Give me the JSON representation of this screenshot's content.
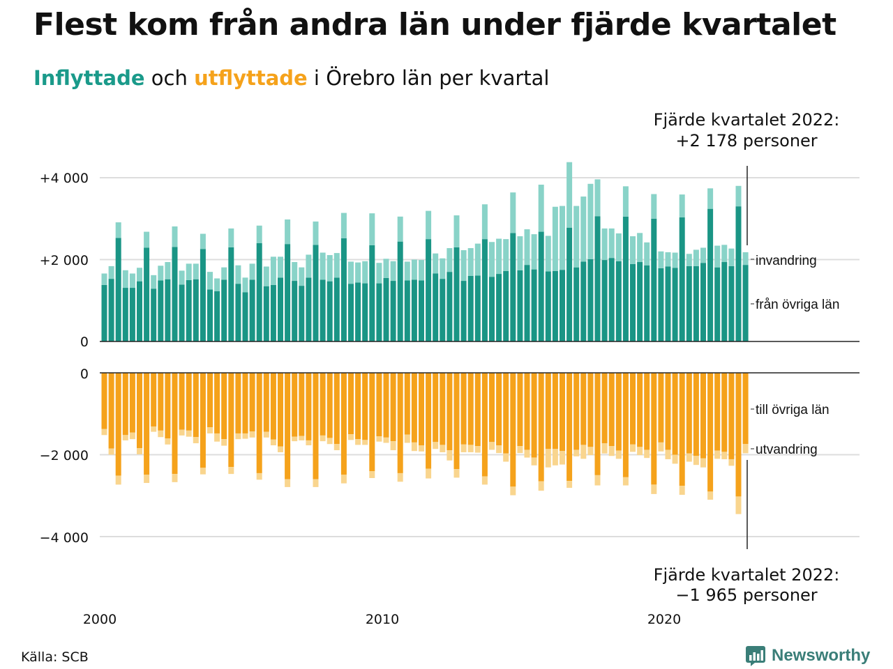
{
  "title": "Flest kom från andra län under fjärde kvartalet",
  "subtitle": {
    "in_word": "Inflyttade",
    "middle": " och ",
    "out_word": "utflyttade",
    "rest": " i Örebro län per kvartal"
  },
  "source": "Källa: SCB",
  "brand": "Newsworthy",
  "colors": {
    "in_dark": "#1a9585",
    "in_light": "#89d3c8",
    "out_dark": "#f5a21b",
    "out_light": "#f9d58e",
    "grid": "#dddddd",
    "axis": "#222222"
  },
  "chart_data": {
    "type": "bar",
    "stacked": true,
    "quarters_start": "2000 Q1",
    "quarters_end": "2022 Q4",
    "x_tick_labels": [
      "2000",
      "2010",
      "2020"
    ],
    "upper_panel": {
      "y_tick_labels": [
        "+4 000",
        "+2 000",
        "0"
      ],
      "ylim": [
        0,
        4300
      ],
      "series": [
        {
          "name": "från övriga län",
          "values": [
            1380,
            1530,
            2530,
            1310,
            1310,
            1470,
            2290,
            1290,
            1490,
            1520,
            2310,
            1390,
            1500,
            1520,
            2260,
            1270,
            1230,
            1510,
            2300,
            1410,
            1200,
            1510,
            2400,
            1350,
            1380,
            1560,
            2380,
            1480,
            1360,
            1560,
            2360,
            1510,
            1470,
            1560,
            2520,
            1410,
            1440,
            1420,
            2350,
            1420,
            1550,
            1480,
            2440,
            1490,
            1510,
            1490,
            2500,
            1660,
            1530,
            1700,
            2300,
            1480,
            1600,
            1610,
            2500,
            1580,
            1650,
            1720,
            2650,
            1740,
            1870,
            1760,
            2680,
            1710,
            1720,
            1750,
            2780,
            1810,
            1950,
            2010,
            3060,
            1990,
            2040,
            1960,
            3050,
            1890,
            1940,
            1860,
            3000,
            1790,
            1830,
            1800,
            3030,
            1840,
            1840,
            1920,
            3240,
            1810,
            1940,
            1840,
            3300,
            1870
          ]
        },
        {
          "name": "invandring",
          "values": [
            280,
            310,
            380,
            430,
            350,
            330,
            390,
            330,
            360,
            420,
            500,
            340,
            400,
            380,
            370,
            430,
            310,
            300,
            460,
            450,
            360,
            390,
            430,
            480,
            690,
            510,
            600,
            460,
            450,
            560,
            570,
            660,
            640,
            600,
            620,
            540,
            490,
            540,
            780,
            500,
            470,
            480,
            610,
            460,
            490,
            500,
            690,
            490,
            500,
            580,
            780,
            750,
            680,
            780,
            850,
            850,
            860,
            780,
            990,
            830,
            870,
            860,
            1150,
            870,
            1570,
            1560,
            1600,
            1500,
            1590,
            1840,
            900,
            770,
            720,
            680,
            740,
            680,
            710,
            560,
            600,
            410,
            350,
            370,
            560,
            300,
            400,
            370,
            500,
            530,
            420,
            430,
            500,
            310
          ]
        }
      ]
    },
    "lower_panel": {
      "y_tick_labels": [
        "0",
        "−2 000",
        "−4 000"
      ],
      "ylim": [
        -4300,
        0
      ],
      "series": [
        {
          "name": "till övriga län",
          "values": [
            -1370,
            -1850,
            -2510,
            -1520,
            -1460,
            -1840,
            -2490,
            -1310,
            -1410,
            -1600,
            -2470,
            -1390,
            -1410,
            -1570,
            -2320,
            -1330,
            -1480,
            -1620,
            -2300,
            -1480,
            -1480,
            -1430,
            -2450,
            -1440,
            -1630,
            -1800,
            -2600,
            -1560,
            -1540,
            -1650,
            -2600,
            -1530,
            -1590,
            -1740,
            -2490,
            -1500,
            -1620,
            -1640,
            -2400,
            -1550,
            -1580,
            -1670,
            -2450,
            -1510,
            -1700,
            -1770,
            -2340,
            -1690,
            -1760,
            -1890,
            -2350,
            -1750,
            -1760,
            -1790,
            -2530,
            -1690,
            -1770,
            -1970,
            -2780,
            -1790,
            -1880,
            -2070,
            -2650,
            -1860,
            -1860,
            -1910,
            -2640,
            -1880,
            -1760,
            -1810,
            -2500,
            -1720,
            -1790,
            -1900,
            -2550,
            -1750,
            -1810,
            -1880,
            -2730,
            -1700,
            -1880,
            -2000,
            -2760,
            -1970,
            -2030,
            -2090,
            -2900,
            -1900,
            -1930,
            -2110,
            -3020,
            -1740
          ]
        },
        {
          "name": "utvandring",
          "values": [
            -150,
            -150,
            -220,
            -130,
            -160,
            -150,
            -200,
            -130,
            -160,
            -150,
            -200,
            -140,
            -150,
            -150,
            -160,
            -150,
            -200,
            -160,
            -170,
            -140,
            -130,
            -150,
            -160,
            -140,
            -140,
            -140,
            -190,
            -110,
            -110,
            -120,
            -190,
            -140,
            -150,
            -150,
            -210,
            -140,
            -140,
            -120,
            -170,
            -130,
            -130,
            -220,
            -210,
            -200,
            -210,
            -150,
            -240,
            -170,
            -180,
            -250,
            -210,
            -190,
            -180,
            -160,
            -200,
            -190,
            -190,
            -200,
            -210,
            -170,
            -190,
            -190,
            -230,
            -450,
            -400,
            -330,
            -170,
            -160,
            -340,
            -200,
            -250,
            -250,
            -240,
            -200,
            -200,
            -180,
            -200,
            -200,
            -230,
            -220,
            -230,
            -220,
            -220,
            -200,
            -220,
            -220,
            -200,
            -200,
            -180,
            -160,
            -430,
            -225
          ]
        }
      ]
    },
    "annotation_top": [
      "Fjärde kvartalet 2022:",
      "+2 178 personer"
    ],
    "annotation_bottom": [
      "Fjärde kvartalet 2022:",
      "−1 965 personer"
    ]
  }
}
